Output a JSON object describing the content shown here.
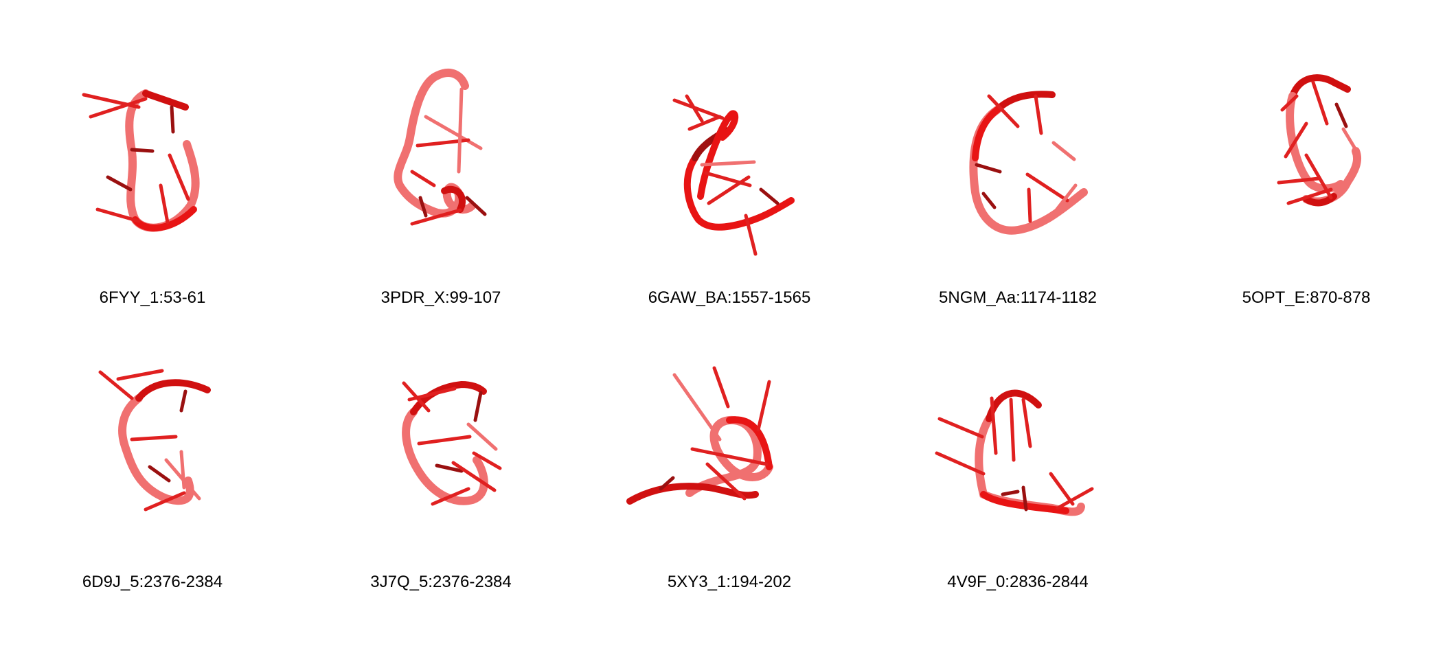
{
  "colors": {
    "backbone": "#e81414",
    "backbone_light": "#f07070",
    "backbone_dark": "#a01010",
    "base": "#e02020",
    "base_dark": "#9a1010",
    "background": "#ffffff"
  },
  "structures": [
    {
      "label": "6FYY_1:53-61",
      "icon": "rna-loop-structure"
    },
    {
      "label": "3PDR_X:99-107",
      "icon": "rna-loop-structure"
    },
    {
      "label": "6GAW_BA:1557-1565",
      "icon": "rna-loop-structure"
    },
    {
      "label": "5NGM_Aa:1174-1182",
      "icon": "rna-loop-structure"
    },
    {
      "label": "5OPT_E:870-878",
      "icon": "rna-loop-structure"
    },
    {
      "label": "6D9J_5:2376-2384",
      "icon": "rna-loop-structure"
    },
    {
      "label": "3J7Q_5:2376-2384",
      "icon": "rna-loop-structure"
    },
    {
      "label": "5XY3_1:194-202",
      "icon": "rna-loop-structure"
    },
    {
      "label": "4V9F_0:2836-2844",
      "icon": "rna-loop-structure"
    }
  ]
}
